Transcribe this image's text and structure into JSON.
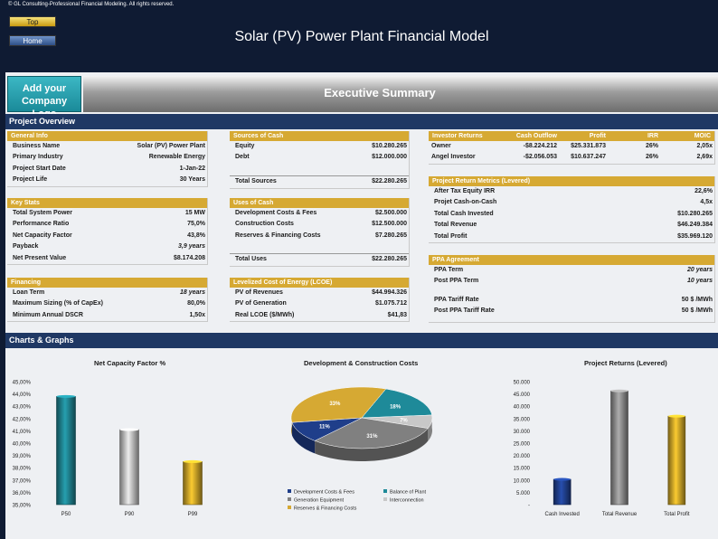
{
  "copyright": "© GL Consulting-Professional Financial Modeling. All rights reserved.",
  "nav": {
    "top": "Top",
    "home": "Home"
  },
  "title": "Solar (PV) Power Plant Financial Model",
  "logo_text": [
    "Add your",
    "Company Logo"
  ],
  "exec_title": "Executive Summary",
  "project_overview": "Project Overview",
  "charts_graphs": "Charts & Graphs",
  "general_info": {
    "title": "General Info",
    "rows": [
      {
        "label": "Business Name",
        "value": "Solar (PV) Power Plant"
      },
      {
        "label": "Primary Industry",
        "value": "Renewable Energy"
      },
      {
        "label": "Project Start Date",
        "value": "1-Jan-22"
      },
      {
        "label": "Project Life",
        "value": "30 Years"
      }
    ]
  },
  "key_stats": {
    "title": "Key Stats",
    "rows": [
      {
        "label": "Total System Power",
        "value": "15 MW"
      },
      {
        "label": "Performance Ratio",
        "value": "75,0%"
      },
      {
        "label": "Net Capacity Factor",
        "value": "43,8%"
      },
      {
        "label": "Payback",
        "value": "3,9 years"
      },
      {
        "label": "Net Present Value",
        "value": "$8.174.208"
      }
    ]
  },
  "financing": {
    "title": "Financing",
    "rows": [
      {
        "label": "Loan Term",
        "value": "18 years"
      },
      {
        "label": "Maximum Sizing (% of CapEx)",
        "value": "80,0%"
      },
      {
        "label": "Minimum Annual DSCR",
        "value": "1,50x"
      }
    ]
  },
  "sources": {
    "title": "Sources of Cash",
    "rows": [
      {
        "label": "Equity",
        "value": "$10.280.265"
      },
      {
        "label": "Debt",
        "value": "$12.000.000"
      }
    ],
    "total_label": "Total Sources",
    "total_value": "$22.280.265"
  },
  "uses": {
    "title": "Uses of Cash",
    "rows": [
      {
        "label": "Development Costs & Fees",
        "value": "$2.500.000"
      },
      {
        "label": "Construction Costs",
        "value": "$12.500.000"
      },
      {
        "label": "Reserves & Financing Costs",
        "value": "$7.280.265"
      }
    ],
    "total_label": "Total Uses",
    "total_value": "$22.280.265"
  },
  "lcoe": {
    "title": "Levelized Cost of Energy (LCOE)",
    "rows": [
      {
        "label": "PV of Revenues",
        "value": "$44.994.326"
      },
      {
        "label": "PV of Generation",
        "value": "$1.075.712"
      },
      {
        "label": "Real LCOE ($/MWh)",
        "value": "$41,83"
      }
    ]
  },
  "investor_returns": {
    "headers": [
      "Investor Returns",
      "Cash Outflow",
      "Profit",
      "IRR",
      "MOIC"
    ],
    "rows": [
      {
        "name": "Owner",
        "outflow": "-$8.224.212",
        "profit": "$25.331.873",
        "irr": "26%",
        "moic": "2,05x"
      },
      {
        "name": "Angel Investor",
        "outflow": "-$2.056.053",
        "profit": "$10.637.247",
        "irr": "26%",
        "moic": "2,69x"
      }
    ]
  },
  "return_metrics": {
    "title": "Project Return Metrics (Levered)",
    "rows": [
      {
        "label": "After Tax Equity IRR",
        "value": "22,6%"
      },
      {
        "label": "Projet Cash-on-Cash",
        "value": "4,5x"
      },
      {
        "label": "Total Cash Invested",
        "value": "$10.280.265"
      },
      {
        "label": "Total Revenue",
        "value": "$46.249.384"
      },
      {
        "label": "Total Profit",
        "value": "$35.969.120"
      }
    ]
  },
  "ppa": {
    "title": "PPA Agreement",
    "rows": [
      {
        "label": "PPA Term",
        "value": "20 years"
      },
      {
        "label": "Post PPA Term",
        "value": "10 years"
      },
      {
        "label": "PPA Tariff Rate",
        "value": "50 $ /MWh"
      },
      {
        "label": "Post PPA Tariff Rate",
        "value": "50 $ /MWh"
      }
    ]
  },
  "chart_data": [
    {
      "type": "bar",
      "title": "Net Capacity Factor %",
      "categories": [
        "P50",
        "P90",
        "P99"
      ],
      "values": [
        43.8,
        41.1,
        38.5
      ],
      "ylim": [
        35,
        45
      ],
      "yticks": [
        "45,00%",
        "44,00%",
        "43,00%",
        "42,00%",
        "41,00%",
        "40,00%",
        "39,00%",
        "38,00%",
        "37,00%",
        "36,00%",
        "35,00%"
      ],
      "colors": [
        "#1e7f8c",
        "#bdbdbd",
        "#c9a227"
      ]
    },
    {
      "type": "pie",
      "title": "Development & Construction Costs",
      "labels": [
        "Balance of Plant",
        "Interconnection",
        "Generation Equipment",
        "Development Costs & Fees",
        "Reserves & Financing Costs"
      ],
      "values": [
        18,
        7,
        31,
        11,
        33
      ],
      "value_labels": [
        "18%",
        "7%",
        "31%",
        "11%",
        "33%"
      ],
      "colors": [
        "#1e8a99",
        "#c8c8c8",
        "#808080",
        "#1f3e8a",
        "#d6a933"
      ],
      "legend": [
        "Development Costs & Fees",
        "Balance of Plant",
        "Generation Equipment",
        "Interconnection",
        "Reserves & Financing Costs"
      ],
      "legend_colors": [
        "#1f3e8a",
        "#1e8a99",
        "#808080",
        "#c8c8c8",
        "#d6a933"
      ]
    },
    {
      "type": "bar",
      "title": "Project Returns (Levered)",
      "categories": [
        "Cash Invested",
        "Total Revenue",
        "Total Profit"
      ],
      "values": [
        10280265,
        46249384,
        35969120
      ],
      "ylim": [
        0,
        50000000
      ],
      "yticks": [
        "50.000",
        "45.000",
        "40.000",
        "35.000",
        "30.000",
        "25.000",
        "20.000",
        "15.000",
        "10.000",
        "5.000",
        "-"
      ],
      "colors": [
        "#1f3e8a",
        "#8a8a8a",
        "#c9a227"
      ]
    }
  ]
}
